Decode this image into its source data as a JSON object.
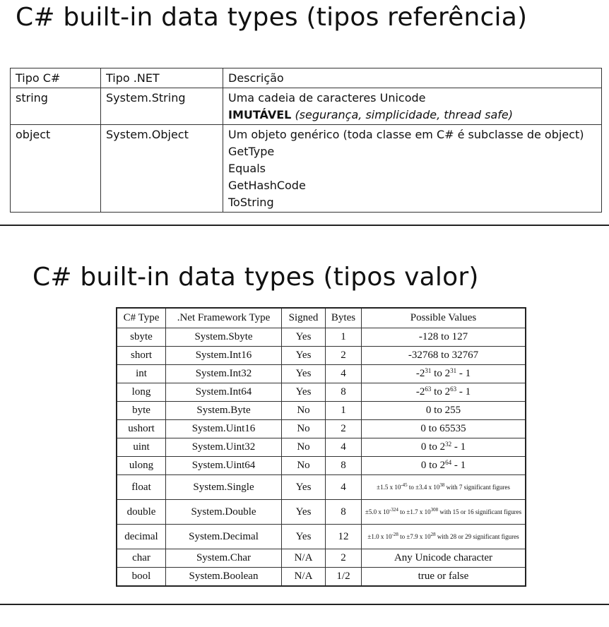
{
  "slide1": {
    "title": "C# built-in data types (tipos referência)",
    "headers": [
      "Tipo C#",
      "Tipo .NET",
      "Descrição"
    ],
    "rows": [
      {
        "cs_type": "string",
        "net_type": "System.String",
        "desc_line1": "Uma cadeia de caracteres Unicode",
        "desc_bold": "IMUTÁVEL",
        "desc_italic": "(segurança, simplicidade, thread safe)"
      },
      {
        "cs_type": "object",
        "net_type": "System.Object",
        "desc_line1": "Um objeto genérico (toda classe em C# é subclasse de object)",
        "methods": [
          "GetType",
          "Equals",
          "GetHashCode",
          "ToString"
        ]
      }
    ]
  },
  "slide2": {
    "title": "C# built-in data types (tipos valor)",
    "headers": [
      "C# Type",
      ".Net Framework Type",
      "Signed",
      "Bytes",
      "Possible Values"
    ],
    "rows": [
      {
        "type": "sbyte",
        "net": "System.Sbyte",
        "signed": "Yes",
        "bytes": "1",
        "values": "-128 to 127"
      },
      {
        "type": "short",
        "net": "System.Int16",
        "signed": "Yes",
        "bytes": "2",
        "values": "-32768 to 32767"
      },
      {
        "type": "int",
        "net": "System.Int32",
        "signed": "Yes",
        "bytes": "4",
        "v_a": "-2",
        "v_a_exp": "31",
        "v_b": " to 2",
        "v_b_exp": "31",
        "v_c": " - 1"
      },
      {
        "type": "long",
        "net": "System.Int64",
        "signed": "Yes",
        "bytes": "8",
        "v_a": "-2",
        "v_a_exp": "63",
        "v_b": " to 2",
        "v_b_exp": "63",
        "v_c": " - 1"
      },
      {
        "type": "byte",
        "net": "System.Byte",
        "signed": "No",
        "bytes": "1",
        "values": "0 to 255"
      },
      {
        "type": "ushort",
        "net": "System.Uint16",
        "signed": "No",
        "bytes": "2",
        "values": "0 to 65535"
      },
      {
        "type": "uint",
        "net": "System.Uint32",
        "signed": "No",
        "bytes": "4",
        "v_a": "0 to 2",
        "v_a_exp": "32",
        "v_b": " - 1"
      },
      {
        "type": "ulong",
        "net": "System.Uint64",
        "signed": "No",
        "bytes": "8",
        "v_a": "0 to 2",
        "v_a_exp": "64",
        "v_b": " - 1"
      },
      {
        "type": "float",
        "net": "System.Single",
        "signed": "Yes",
        "bytes": "4",
        "v_a": "±1.5 x 10",
        "v_a_exp": "-45",
        "v_b": " to ±3.4 x 10",
        "v_b_exp": "38",
        "v_c": " with 7 significant figures"
      },
      {
        "type": "double",
        "net": "System.Double",
        "signed": "Yes",
        "bytes": "8",
        "v_a": "±5.0 x 10",
        "v_a_exp": "-324",
        "v_b": " to ±1.7 x 10",
        "v_b_exp": "308",
        "v_c": " with 15 or 16 significant figures"
      },
      {
        "type": "decimal",
        "net": "System.Decimal",
        "signed": "Yes",
        "bytes": "12",
        "v_a": "±1.0 x 10",
        "v_a_exp": "-28",
        "v_b": " to ±7.9 x 10",
        "v_b_exp": "28",
        "v_c": " with 28 or 29 significant figures"
      },
      {
        "type": "char",
        "net": "System.Char",
        "signed": "N/A",
        "bytes": "2",
        "values": "Any Unicode character"
      },
      {
        "type": "bool",
        "net": "System.Boolean",
        "signed": "N/A",
        "bytes": "1/2",
        "values": "true or false"
      }
    ]
  }
}
